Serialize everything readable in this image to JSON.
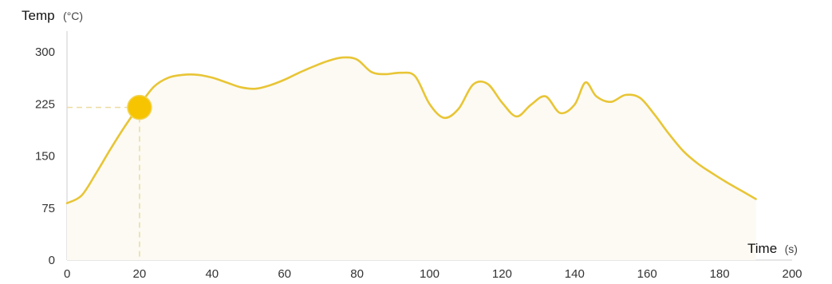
{
  "chart_data": {
    "type": "area",
    "ylabel": "Temp",
    "yunit": "(°C)",
    "xlabel": "Time",
    "xunit": "(s)",
    "xlim": [
      0,
      200
    ],
    "ylim": [
      0,
      330
    ],
    "xticks": [
      0,
      20,
      40,
      60,
      80,
      100,
      120,
      140,
      160,
      180,
      200
    ],
    "yticks": [
      0,
      75,
      150,
      225,
      300
    ],
    "grid": false,
    "series": [
      {
        "x": [
          0,
          4,
          8,
          12,
          16,
          20,
          24,
          28,
          32,
          36,
          40,
          44,
          48,
          52,
          56,
          60,
          64,
          68,
          72,
          76,
          80,
          84,
          88,
          92,
          96,
          100,
          104,
          108,
          112,
          116,
          120,
          124,
          128,
          132,
          136,
          140,
          143,
          146,
          150,
          154,
          158,
          162,
          166,
          170,
          174,
          178,
          182,
          186,
          190
        ],
        "y": [
          82,
          93,
          125,
          160,
          193,
          223,
          250,
          263,
          267,
          267,
          263,
          256,
          249,
          247,
          252,
          260,
          270,
          279,
          287,
          292,
          289,
          271,
          268,
          270,
          265,
          225,
          205,
          218,
          253,
          254,
          227,
          207,
          224,
          236,
          212,
          224,
          256,
          236,
          228,
          238,
          234,
          210,
          182,
          157,
          139,
          125,
          112,
          100,
          88
        ]
      }
    ],
    "highlight": {
      "x": 20,
      "y": 220
    },
    "colors": {
      "line": "#e8c536",
      "fill": "#fcfaf3",
      "marker": "#f6c400",
      "guide": "#ecdca0",
      "axis": "#d6d6d6"
    }
  }
}
